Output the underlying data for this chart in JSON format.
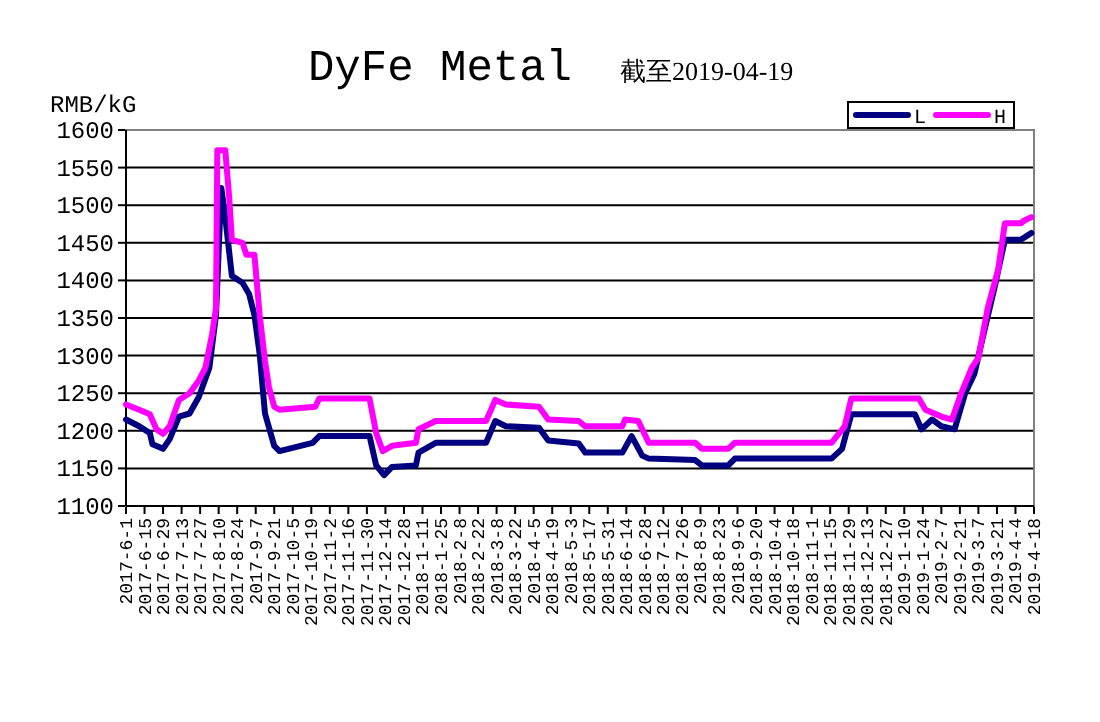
{
  "chart_data": {
    "type": "line",
    "title": "DyFe Metal",
    "subtitle": "截至2019-04-19",
    "ylabel": "RMB/kG",
    "xlim": [
      "2017-06-01",
      "2019-04-18"
    ],
    "xticks": [
      {
        "value": "2017-06-01",
        "label": "2017-6-1"
      },
      {
        "value": "2017-06-15",
        "label": "2017-6-15"
      },
      {
        "value": "2017-06-29",
        "label": "2017-6-29"
      },
      {
        "value": "2017-07-13",
        "label": "2017-7-13"
      },
      {
        "value": "2017-07-27",
        "label": "2017-7-27"
      },
      {
        "value": "2017-08-10",
        "label": "2017-8-10"
      },
      {
        "value": "2017-08-24",
        "label": "2017-8-24"
      },
      {
        "value": "2017-09-07",
        "label": "2017-9-7"
      },
      {
        "value": "2017-09-21",
        "label": "2017-9-21"
      },
      {
        "value": "2017-10-05",
        "label": "2017-10-5"
      },
      {
        "value": "2017-10-19",
        "label": "2017-10-19"
      },
      {
        "value": "2017-11-02",
        "label": "2017-11-2"
      },
      {
        "value": "2017-11-16",
        "label": "2017-11-16"
      },
      {
        "value": "2017-11-30",
        "label": "2017-11-30"
      },
      {
        "value": "2017-12-14",
        "label": "2017-12-14"
      },
      {
        "value": "2017-12-28",
        "label": "2017-12-28"
      },
      {
        "value": "2018-01-11",
        "label": "2018-1-11"
      },
      {
        "value": "2018-01-25",
        "label": "2018-1-25"
      },
      {
        "value": "2018-02-08",
        "label": "2018-2-8"
      },
      {
        "value": "2018-02-22",
        "label": "2018-2-22"
      },
      {
        "value": "2018-03-08",
        "label": "2018-3-8"
      },
      {
        "value": "2018-03-22",
        "label": "2018-3-22"
      },
      {
        "value": "2018-04-05",
        "label": "2018-4-5"
      },
      {
        "value": "2018-04-19",
        "label": "2018-4-19"
      },
      {
        "value": "2018-05-03",
        "label": "2018-5-3"
      },
      {
        "value": "2018-05-17",
        "label": "2018-5-17"
      },
      {
        "value": "2018-05-31",
        "label": "2018-5-31"
      },
      {
        "value": "2018-06-14",
        "label": "2018-6-14"
      },
      {
        "value": "2018-06-28",
        "label": "2018-6-28"
      },
      {
        "value": "2018-07-12",
        "label": "2018-7-12"
      },
      {
        "value": "2018-07-26",
        "label": "2018-7-26"
      },
      {
        "value": "2018-08-09",
        "label": "2018-8-9"
      },
      {
        "value": "2018-08-23",
        "label": "2018-8-23"
      },
      {
        "value": "2018-09-06",
        "label": "2018-9-6"
      },
      {
        "value": "2018-09-20",
        "label": "2018-9-20"
      },
      {
        "value": "2018-10-04",
        "label": "2018-10-4"
      },
      {
        "value": "2018-10-18",
        "label": "2018-10-18"
      },
      {
        "value": "2018-11-01",
        "label": "2018-11-1"
      },
      {
        "value": "2018-11-15",
        "label": "2018-11-15"
      },
      {
        "value": "2018-11-29",
        "label": "2018-11-29"
      },
      {
        "value": "2018-12-13",
        "label": "2018-12-13"
      },
      {
        "value": "2018-12-27",
        "label": "2018-12-27"
      },
      {
        "value": "2019-01-10",
        "label": "2019-1-10"
      },
      {
        "value": "2019-01-24",
        "label": "2019-1-24"
      },
      {
        "value": "2019-02-07",
        "label": "2019-2-7"
      },
      {
        "value": "2019-02-21",
        "label": "2019-2-21"
      },
      {
        "value": "2019-03-07",
        "label": "2019-3-7"
      },
      {
        "value": "2019-03-21",
        "label": "2019-3-21"
      },
      {
        "value": "2019-04-04",
        "label": "2019-4-4"
      },
      {
        "value": "2019-04-18",
        "label": "2019-4-18"
      }
    ],
    "ylim": [
      1100,
      1600
    ],
    "yticks": [
      1100,
      1150,
      1200,
      1250,
      1300,
      1350,
      1400,
      1450,
      1500,
      1550,
      1600
    ],
    "grid": "y",
    "legend": "top right",
    "marker": "none",
    "line_style": "solid",
    "series": [
      {
        "name": "L",
        "color": "#000080",
        "x": [
          "2017-06-01",
          "2017-06-11",
          "2017-06-19",
          "2017-06-21",
          "2017-06-29",
          "2017-07-04",
          "2017-07-11",
          "2017-07-19",
          "2017-07-26",
          "2017-08-03",
          "2017-08-08",
          "2017-08-12",
          "2017-08-15",
          "2017-08-20",
          "2017-08-28",
          "2017-09-02",
          "2017-09-06",
          "2017-09-10",
          "2017-09-14",
          "2017-09-21",
          "2017-09-25",
          "2017-10-20",
          "2017-10-25",
          "2017-12-02",
          "2017-12-07",
          "2017-12-13",
          "2017-12-19",
          "2018-01-06",
          "2018-01-08",
          "2018-01-21",
          "2018-02-28",
          "2018-03-07",
          "2018-03-15",
          "2018-04-09",
          "2018-04-16",
          "2018-05-09",
          "2018-05-14",
          "2018-06-11",
          "2018-06-18",
          "2018-06-26",
          "2018-07-01",
          "2018-08-05",
          "2018-08-10",
          "2018-08-30",
          "2018-09-04",
          "2018-11-16",
          "2018-11-24",
          "2018-12-01",
          "2019-01-18",
          "2019-01-23",
          "2019-01-31",
          "2019-02-07",
          "2019-02-17",
          "2019-02-25",
          "2019-03-04",
          "2019-03-12",
          "2019-03-19",
          "2019-03-27",
          "2019-04-08",
          "2019-04-16"
        ],
        "values": [
          1215,
          1206,
          1197,
          1182,
          1176,
          1189,
          1219,
          1223,
          1245,
          1284,
          1354,
          1523,
          1484,
          1406,
          1397,
          1382,
          1354,
          1302,
          1223,
          1180,
          1173,
          1184,
          1193,
          1193,
          1154,
          1141,
          1152,
          1154,
          1171,
          1184,
          1184,
          1213,
          1206,
          1204,
          1187,
          1183,
          1171,
          1171,
          1193,
          1167,
          1163,
          1161,
          1154,
          1154,
          1163,
          1163,
          1176,
          1222,
          1222,
          1202,
          1215,
          1206,
          1202,
          1250,
          1276,
          1337,
          1389,
          1454,
          1454,
          1463
        ]
      },
      {
        "name": "H",
        "color": "#ff00ff",
        "x": [
          "2017-06-01",
          "2017-06-11",
          "2017-06-19",
          "2017-06-24",
          "2017-06-29",
          "2017-07-04",
          "2017-07-11",
          "2017-07-19",
          "2017-07-26",
          "2017-07-31",
          "2017-08-05",
          "2017-08-08",
          "2017-08-09",
          "2017-08-15",
          "2017-08-18",
          "2017-08-20",
          "2017-08-28",
          "2017-08-31",
          "2017-09-06",
          "2017-09-10",
          "2017-09-14",
          "2017-09-17",
          "2017-09-21",
          "2017-09-25",
          "2017-10-22",
          "2017-10-25",
          "2017-12-02",
          "2017-12-07",
          "2017-12-12",
          "2017-12-19",
          "2018-01-06",
          "2018-01-08",
          "2018-01-21",
          "2018-02-28",
          "2018-03-07",
          "2018-03-15",
          "2018-04-09",
          "2018-04-16",
          "2018-05-09",
          "2018-05-14",
          "2018-06-11",
          "2018-06-13",
          "2018-06-23",
          "2018-07-01",
          "2018-08-05",
          "2018-08-10",
          "2018-08-30",
          "2018-09-04",
          "2018-11-16",
          "2018-11-26",
          "2018-12-01",
          "2019-01-21",
          "2019-01-26",
          "2019-02-07",
          "2019-02-15",
          "2019-02-22",
          "2019-03-02",
          "2019-03-07",
          "2019-03-14",
          "2019-03-22",
          "2019-03-27",
          "2019-04-08",
          "2019-04-11",
          "2019-04-16"
        ],
        "values": [
          1235,
          1228,
          1222,
          1202,
          1196,
          1206,
          1241,
          1250,
          1267,
          1284,
          1328,
          1363,
          1573,
          1573,
          1510,
          1454,
          1450,
          1434,
          1434,
          1354,
          1293,
          1258,
          1232,
          1228,
          1232,
          1243,
          1243,
          1197,
          1173,
          1180,
          1184,
          1202,
          1213,
          1213,
          1241,
          1235,
          1232,
          1215,
          1213,
          1206,
          1206,
          1215,
          1213,
          1184,
          1184,
          1176,
          1176,
          1184,
          1184,
          1206,
          1243,
          1243,
          1228,
          1219,
          1215,
          1250,
          1284,
          1297,
          1363,
          1415,
          1476,
          1476,
          1480,
          1484
        ]
      }
    ]
  }
}
